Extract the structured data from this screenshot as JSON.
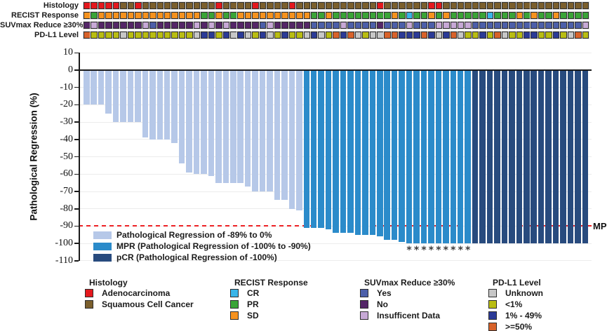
{
  "figure": {
    "y_axis_title": "Pathological Regression (%)",
    "mpr_line_label": "MPR"
  },
  "annotation_tracks": {
    "rows": [
      {
        "key": "histology",
        "label": "Histology"
      },
      {
        "key": "recist",
        "label": "RECIST Response"
      },
      {
        "key": "suvmax",
        "label": "SUVmax Reduce ≥30%"
      },
      {
        "key": "pdl1",
        "label": "PD-L1 Level"
      }
    ],
    "palette": {
      "histology": {
        "A": "#e4181d",
        "S": "#7b5f2d"
      },
      "recist": {
        "CR": "#39b5e8",
        "PR": "#3aa437",
        "SD": "#f6921e"
      },
      "suvmax": {
        "Y": "#4c5fa9",
        "N": "#542667",
        "I": "#c7a9d6"
      },
      "pdl1": {
        "U": "#c7c7c7",
        "L": "#b9bd12",
        "M": "#2b3a96",
        "H": "#d8622a"
      }
    },
    "cells": {
      "histology": [
        "A",
        "A",
        "A",
        "A",
        "A",
        "S",
        "S",
        "A",
        "S",
        "S",
        "S",
        "S",
        "S",
        "S",
        "S",
        "S",
        "S",
        "S",
        "A",
        "S",
        "S",
        "S",
        "S",
        "A",
        "S",
        "S",
        "S",
        "S",
        "A",
        "S",
        "S",
        "S",
        "S",
        "S",
        "S",
        "S",
        "S",
        "S",
        "S",
        "S",
        "A",
        "S",
        "S",
        "S",
        "S",
        "S",
        "S",
        "A",
        "A",
        "S",
        "S",
        "S",
        "S",
        "S",
        "S",
        "S",
        "S",
        "S",
        "S",
        "S",
        "S",
        "S",
        "S",
        "S",
        "S",
        "S",
        "S",
        "S",
        "S"
      ],
      "recist": [
        "SD",
        "PR",
        "SD",
        "SD",
        "SD",
        "SD",
        "SD",
        "SD",
        "SD",
        "SD",
        "SD",
        "SD",
        "SD",
        "SD",
        "SD",
        "SD",
        "PR",
        "PR",
        "SD",
        "PR",
        "PR",
        "SD",
        "SD",
        "SD",
        "SD",
        "SD",
        "SD",
        "SD",
        "SD",
        "SD",
        "SD",
        "PR",
        "PR",
        "SD",
        "PR",
        "PR",
        "PR",
        "PR",
        "PR",
        "PR",
        "PR",
        "PR",
        "SD",
        "PR",
        "CR",
        "PR",
        "PR",
        "SD",
        "PR",
        "SD",
        "PR",
        "PR",
        "PR",
        "PR",
        "PR",
        "CR",
        "PR",
        "PR",
        "PR",
        "SD",
        "PR",
        "SD",
        "PR",
        "PR",
        "SD",
        "PR",
        "PR",
        "PR",
        "PR"
      ],
      "suvmax": [
        "N",
        "I",
        "N",
        "N",
        "N",
        "N",
        "N",
        "N",
        "I",
        "Y",
        "N",
        "N",
        "N",
        "N",
        "N",
        "I",
        "N",
        "I",
        "N",
        "I",
        "N",
        "N",
        "N",
        "N",
        "Y",
        "I",
        "N",
        "N",
        "N",
        "N",
        "N",
        "Y",
        "Y",
        "Y",
        "Y",
        "I",
        "Y",
        "Y",
        "Y",
        "Y",
        "N",
        "Y",
        "Y",
        "Y",
        "I",
        "Y",
        "Y",
        "Y",
        "I",
        "I",
        "I",
        "I",
        "I",
        "Y",
        "Y",
        "Y",
        "Y",
        "Y",
        "Y",
        "Y",
        "Y",
        "Y",
        "Y",
        "Y",
        "Y",
        "Y",
        "Y",
        "Y",
        "I"
      ],
      "pdl1": [
        "H",
        "L",
        "L",
        "L",
        "L",
        "U",
        "L",
        "L",
        "L",
        "L",
        "L",
        "L",
        "L",
        "L",
        "L",
        "U",
        "M",
        "M",
        "L",
        "M",
        "U",
        "M",
        "U",
        "L",
        "M",
        "U",
        "L",
        "M",
        "L",
        "L",
        "U",
        "M",
        "U",
        "L",
        "H",
        "M",
        "H",
        "U",
        "L",
        "U",
        "U",
        "H",
        "H",
        "M",
        "M",
        "M",
        "H",
        "M",
        "U",
        "M",
        "H",
        "U",
        "L",
        "L",
        "M",
        "L",
        "H",
        "U",
        "L",
        "L",
        "M",
        "M",
        "L",
        "L",
        "M",
        "L",
        "U",
        "H",
        "L"
      ]
    }
  },
  "chart_data": {
    "type": "bar",
    "ylabel": "Pathological Regression (%)",
    "ylim": [
      -110,
      10
    ],
    "yticks": [
      10,
      0,
      -10,
      -20,
      -30,
      -40,
      -50,
      -60,
      -70,
      -80,
      -90,
      -100,
      -110
    ],
    "grid": true,
    "values": [
      -20,
      -20,
      -20,
      -25,
      -30,
      -30,
      -30,
      -30,
      -39,
      -40,
      -40,
      -40,
      -42,
      -54,
      -59,
      -60,
      -60,
      -61,
      -65,
      -65,
      -65,
      -65,
      -67,
      -70,
      -70,
      -70,
      -75,
      -75,
      -80,
      -81,
      -91,
      -91,
      -91,
      -92,
      -94,
      -94,
      -94,
      -95,
      -95,
      -95,
      -96,
      -98,
      -98,
      -99,
      -100,
      -100,
      -100,
      -100,
      -100,
      -100,
      -100,
      -100,
      -100,
      -100,
      -100,
      -100,
      -100,
      -100,
      -100,
      -100,
      -100,
      -100,
      -100,
      -100,
      -100,
      -100,
      -100,
      -100,
      -100
    ],
    "bar_groups": [
      "reg",
      "reg",
      "reg",
      "reg",
      "reg",
      "reg",
      "reg",
      "reg",
      "reg",
      "reg",
      "reg",
      "reg",
      "reg",
      "reg",
      "reg",
      "reg",
      "reg",
      "reg",
      "reg",
      "reg",
      "reg",
      "reg",
      "reg",
      "reg",
      "reg",
      "reg",
      "reg",
      "reg",
      "reg",
      "reg",
      "mpr",
      "mpr",
      "mpr",
      "mpr",
      "mpr",
      "mpr",
      "mpr",
      "mpr",
      "mpr",
      "mpr",
      "mpr",
      "mpr",
      "mpr",
      "mpr",
      "mpr",
      "mpr",
      "mpr",
      "mpr",
      "mpr",
      "mpr",
      "mpr",
      "mpr",
      "mpr",
      "pcr",
      "pcr",
      "pcr",
      "pcr",
      "pcr",
      "pcr",
      "pcr",
      "pcr",
      "pcr",
      "pcr",
      "pcr",
      "pcr",
      "pcr",
      "pcr",
      "pcr",
      "pcr"
    ],
    "asterisk_bar_indices": [
      44,
      45,
      46,
      47,
      48,
      49,
      50,
      51,
      52
    ],
    "reference_line": {
      "y": -90,
      "label": "MPR",
      "color": "#ed2024",
      "style": "dashed"
    },
    "legend": {
      "position": "inside-bottom-left",
      "items": [
        {
          "key": "reg",
          "label": "Pathological Regression of -89% to 0%",
          "color": "#b6c8e8"
        },
        {
          "key": "mpr",
          "label": "MPR (Pathological Regression of -100% to -90%)",
          "color": "#2b8bca"
        },
        {
          "key": "pcr",
          "label": "pCR (Pathological Regression of -100%)",
          "color": "#284b7e"
        }
      ]
    }
  },
  "bottom_legend": {
    "groups": [
      {
        "title": "Histology",
        "items": [
          {
            "label": "Adenocarcinoma",
            "color": "#e4181d"
          },
          {
            "label": "Squamous Cell Cancer",
            "color": "#7b5f2d"
          }
        ]
      },
      {
        "title": "RECIST Response",
        "items": [
          {
            "label": "CR",
            "color": "#39b5e8"
          },
          {
            "label": "PR",
            "color": "#3aa437"
          },
          {
            "label": "SD",
            "color": "#f6921e"
          }
        ]
      },
      {
        "title": "SUVmax Reduce ≥30%",
        "items": [
          {
            "label": "Yes",
            "color": "#4c5fa9"
          },
          {
            "label": "No",
            "color": "#542667"
          },
          {
            "label": "Insufficent Data",
            "color": "#c7a9d6"
          }
        ]
      },
      {
        "title": "PD-L1 Level",
        "items": [
          {
            "label": "Unknown",
            "color": "#c7c7c7"
          },
          {
            "label": "<1%",
            "color": "#b9bd12"
          },
          {
            "label": "1% - 49%",
            "color": "#2b3a96"
          },
          {
            "label": ">=50%",
            "color": "#d8622a"
          }
        ]
      }
    ]
  }
}
